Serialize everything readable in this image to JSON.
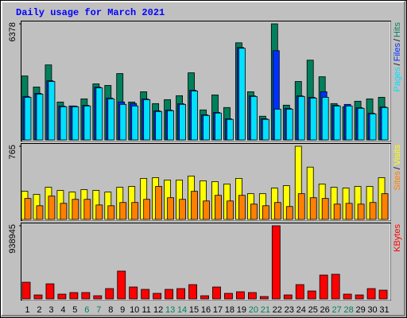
{
  "chart_data": [
    {
      "type": "bar",
      "title": "Daily usage for March 2021",
      "legend_separator": "/",
      "ylim": [
        0,
        6378
      ],
      "yticks": [
        6378
      ],
      "series": [
        {
          "name": "Hits",
          "color": "#00805c",
          "values": [
            3514,
            2907,
            4122,
            2083,
            1866,
            2256,
            3080,
            2994,
            3645,
            2083,
            2647,
            1996,
            2213,
            2430,
            3688,
            1649,
            2473,
            1779,
            5337,
            2647,
            1302,
            6378,
            1909,
            3211,
            4382,
            3471,
            1996,
            1822,
            2126,
            2256,
            2343
          ]
        },
        {
          "name": "Files",
          "color": "#0030ff",
          "values": [
            2390,
            2560,
            3250,
            1860,
            1860,
            1900,
            2900,
            2300,
            2083,
            2000,
            2250,
            1600,
            1640,
            1990,
            2730,
            1380,
            1510,
            1160,
            5080,
            2420,
            1160,
            4903,
            1730,
            2420,
            2340,
            2647,
            1900,
            1952,
            1770,
            1470,
            1810
          ]
        },
        {
          "name": "Pages",
          "color": "#00e0ff",
          "values": [
            2343,
            2517,
            3211,
            1822,
            1822,
            1866,
            2864,
            2256,
            1952,
            1866,
            2213,
            1562,
            1605,
            1952,
            2690,
            1345,
            1475,
            1128,
            5033,
            2386,
            1128,
            1692,
            1692,
            2386,
            2300,
            2343,
            1866,
            1866,
            1736,
            1432,
            1779
          ]
        }
      ]
    },
    {
      "type": "bar",
      "ylim": [
        0,
        765
      ],
      "yticks": [
        765
      ],
      "series": [
        {
          "name": "Visits",
          "color": "#ffff00",
          "values": [
            294,
            261,
            336,
            303,
            286,
            311,
            303,
            286,
            336,
            345,
            429,
            437,
            412,
            412,
            454,
            404,
            395,
            370,
            429,
            269,
            269,
            328,
            353,
            765,
            547,
            370,
            336,
            328,
            345,
            345,
            437
          ]
        },
        {
          "name": "Sites",
          "color": "#ff8000",
          "values": [
            219,
            143,
            244,
            168,
            210,
            210,
            151,
            143,
            177,
            177,
            210,
            345,
            227,
            210,
            294,
            193,
            252,
            193,
            252,
            160,
            143,
            177,
            135,
            269,
            227,
            219,
            160,
            168,
            160,
            177,
            269
          ]
        }
      ]
    },
    {
      "type": "bar",
      "ylim": [
        0,
        938945
      ],
      "yticks": [
        938945
      ],
      "categories": [
        "1",
        "2",
        "3",
        "4",
        "5",
        "6",
        "7",
        "8",
        "9",
        "10",
        "11",
        "12",
        "13",
        "14",
        "15",
        "16",
        "17",
        "18",
        "19",
        "20",
        "21",
        "22",
        "23",
        "24",
        "25",
        "26",
        "27",
        "28",
        "29",
        "30",
        "31"
      ],
      "category_colors": [
        "#000000",
        "#000000",
        "#000000",
        "#000000",
        "#000000",
        "#00805c",
        "#00805c",
        "#000000",
        "#000000",
        "#000000",
        "#000000",
        "#000000",
        "#00805c",
        "#00805c",
        "#000000",
        "#000000",
        "#000000",
        "#000000",
        "#000000",
        "#00805c",
        "#00805c",
        "#000000",
        "#000000",
        "#000000",
        "#000000",
        "#000000",
        "#00805c",
        "#00805c",
        "#000000",
        "#000000",
        "#000000"
      ],
      "series": [
        {
          "name": "KBytes",
          "color": "#ff0000",
          "values": [
            214324,
            51030,
            193911,
            61235,
            81648,
            81648,
            40824,
            132677,
            357207,
            153089,
            122471,
            71442,
            122471,
            132677,
            183705,
            40824,
            153089,
            71442,
            91852,
            81648,
            30618,
            938945,
            51030,
            183705,
            102059,
            306177,
            316383,
            61235,
            51030,
            132677,
            112265
          ]
        }
      ]
    }
  ]
}
